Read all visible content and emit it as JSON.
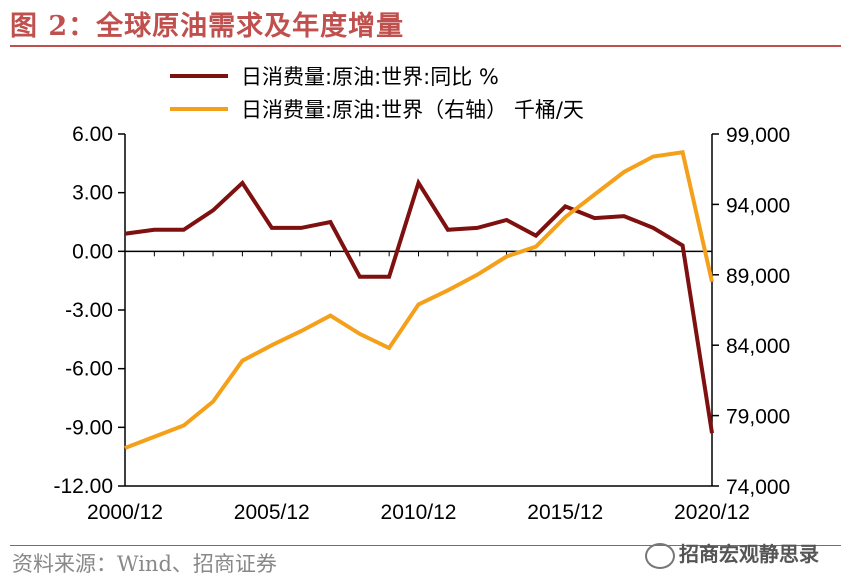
{
  "header": {
    "title": "图 2：全球原油需求及年度增量"
  },
  "footer": {
    "source": "资料来源：Wind、招商证券",
    "watermark": "招商宏观静思录"
  },
  "colors": {
    "accent": "#c0504d",
    "yoy_series": "#7f1010",
    "level_series": "#f5a01a"
  },
  "chart_data": {
    "type": "line",
    "x": [
      "2000/12",
      "2001/12",
      "2002/12",
      "2003/12",
      "2004/12",
      "2005/12",
      "2006/12",
      "2007/12",
      "2008/12",
      "2009/12",
      "2010/12",
      "2011/12",
      "2012/12",
      "2013/12",
      "2014/12",
      "2015/12",
      "2016/12",
      "2017/12",
      "2018/12",
      "2019/12",
      "2020/12"
    ],
    "x_tick_labels": [
      "2000/12",
      "2005/12",
      "2010/12",
      "2015/12",
      "2020/12"
    ],
    "series": [
      {
        "name": "日消费量:原油:世界:同比 %",
        "axis": "left",
        "color": "#7f1010",
        "values": [
          0.9,
          1.1,
          1.1,
          2.1,
          3.5,
          1.2,
          1.2,
          1.5,
          -1.3,
          -1.3,
          3.5,
          1.1,
          1.2,
          1.6,
          0.8,
          2.3,
          1.7,
          1.8,
          1.2,
          0.3,
          -9.3
        ]
      },
      {
        "name": "日消费量:原油:世界（右轴） 千桶/天",
        "axis": "right",
        "color": "#f5a01a",
        "values": [
          76700,
          77500,
          78300,
          80000,
          82900,
          84000,
          85000,
          86100,
          84800,
          83800,
          86900,
          87900,
          89000,
          90300,
          91000,
          93100,
          94700,
          96300,
          97400,
          97700,
          88500
        ]
      }
    ],
    "y_left": {
      "ylim": [
        -12,
        6
      ],
      "ticks": [
        "6.00",
        "3.00",
        "0.00",
        "-3.00",
        "-6.00",
        "-9.00",
        "-12.00"
      ],
      "tick_values": [
        6,
        3,
        0,
        -3,
        -6,
        -9,
        -12
      ]
    },
    "y_right": {
      "ylim": [
        74000,
        99000
      ],
      "ticks": [
        "99,000",
        "94,000",
        "89,000",
        "84,000",
        "79,000",
        "74,000"
      ],
      "tick_values": [
        99000,
        94000,
        89000,
        84000,
        79000,
        74000
      ]
    },
    "legend_position": "top",
    "grid": false
  }
}
